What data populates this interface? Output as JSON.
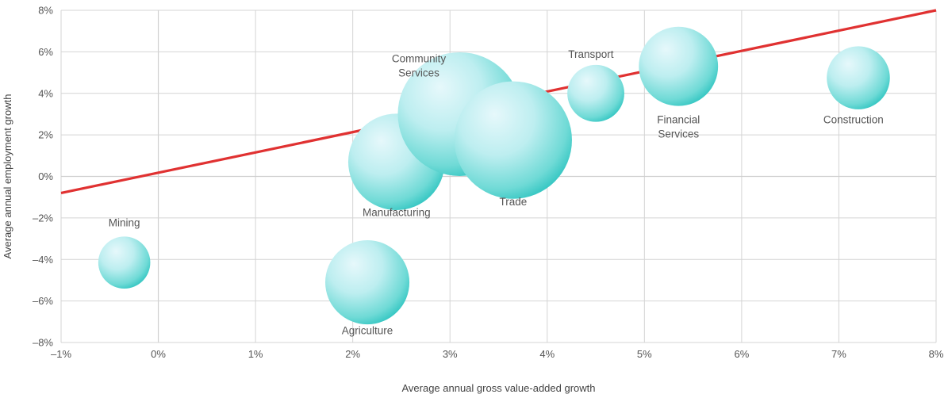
{
  "chart_data": {
    "type": "scatter",
    "subtype": "bubble",
    "title": "",
    "xlabel": "Average annual gross value-added growth",
    "ylabel": "Average annual employment growth",
    "xlim": [
      -1,
      8
    ],
    "ylim": [
      -8,
      8
    ],
    "xticks": [
      -1,
      0,
      1,
      2,
      3,
      4,
      5,
      6,
      7,
      8
    ],
    "yticks": [
      -8,
      -6,
      -4,
      -2,
      0,
      2,
      4,
      6,
      8
    ],
    "x_tick_labels": [
      "–1%",
      "0%",
      "1%",
      "2%",
      "3%",
      "4%",
      "5%",
      "6%",
      "7%",
      "8%"
    ],
    "y_tick_labels": [
      "–8%",
      "–6%",
      "–4%",
      "–2%",
      "0%",
      "2%",
      "4%",
      "6%",
      "8%"
    ],
    "grid": true,
    "legend": "none",
    "bubble_color": "#2ec4c0",
    "bubble_highlight": "#e6f8fb",
    "trend_color": "#e03131",
    "trend_line": {
      "x": [
        -1,
        8
      ],
      "y": [
        -0.8,
        8.0
      ]
    },
    "points": [
      {
        "label": "Mining",
        "x": -0.35,
        "y": -4.15,
        "size": 0.42,
        "label_x": -0.35,
        "label_y": -2.4,
        "lines": [
          "Mining"
        ]
      },
      {
        "label": "Agriculture",
        "x": 2.15,
        "y": -5.1,
        "size": 0.68,
        "label_x": 2.15,
        "label_y": -7.6,
        "lines": [
          "Agriculture"
        ]
      },
      {
        "label": "Manufacturing",
        "x": 2.45,
        "y": 0.7,
        "size": 0.78,
        "label_x": 2.45,
        "label_y": -1.9,
        "lines": [
          "Manufacturing"
        ]
      },
      {
        "label": "Community Services",
        "x": 3.1,
        "y": 3.0,
        "size": 1.0,
        "label_x": 2.68,
        "label_y": 5.5,
        "lines": [
          "Community",
          "Services"
        ]
      },
      {
        "label": "Trade",
        "x": 3.65,
        "y": 1.75,
        "size": 0.95,
        "label_x": 3.65,
        "label_y": -1.4,
        "lines": [
          "Trade"
        ]
      },
      {
        "label": "Transport",
        "x": 4.5,
        "y": 4.0,
        "size": 0.46,
        "label_x": 4.45,
        "label_y": 5.7,
        "lines": [
          "Transport"
        ]
      },
      {
        "label": "Financial Services",
        "x": 5.35,
        "y": 5.3,
        "size": 0.64,
        "label_x": 5.35,
        "label_y": 2.55,
        "lines": [
          "Financial",
          "Services"
        ]
      },
      {
        "label": "Construction",
        "x": 7.2,
        "y": 4.75,
        "size": 0.51,
        "label_x": 7.15,
        "label_y": 2.55,
        "lines": [
          "Construction"
        ]
      }
    ]
  }
}
